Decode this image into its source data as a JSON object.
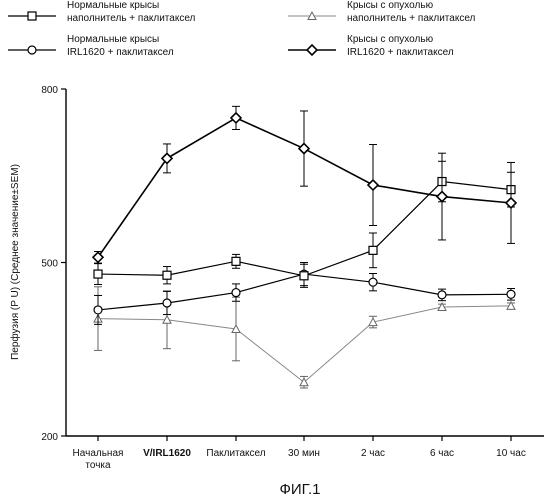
{
  "caption": "ФИГ.1",
  "chart_data": {
    "type": "line",
    "ylabel": "Перфузия (P U) (Среднее значение±SEM)",
    "ylim": [
      200,
      800
    ],
    "yticks": [
      200,
      500,
      800
    ],
    "grid": false,
    "legend_position": "top",
    "categories": [
      [
        "Начальная",
        "точка"
      ],
      [
        "V/IRL1620"
      ],
      [
        "Паклитаксел"
      ],
      [
        "30 мин"
      ],
      [
        "2 час"
      ],
      [
        "6 час"
      ],
      [
        "10 час"
      ]
    ],
    "series": [
      {
        "name": [
          "Нормальные крысы",
          "наполнитель + паклитаксел"
        ],
        "marker": "square",
        "color": "#000000",
        "line_color": "#000000",
        "line_width": 1.2,
        "values": [
          480,
          478,
          502,
          477,
          521,
          640,
          626
        ],
        "errors": [
          18,
          15,
          12,
          20,
          30,
          35,
          30
        ]
      },
      {
        "name": [
          "Нормальные крысы",
          "IRL1620 + паклитаксел"
        ],
        "marker": "circle",
        "color": "#000000",
        "line_color": "#000000",
        "line_width": 1.2,
        "values": [
          418,
          430,
          448,
          480,
          466,
          444,
          445
        ],
        "errors": [
          25,
          20,
          15,
          20,
          15,
          10,
          10
        ]
      },
      {
        "name": [
          "Крысы с опухолью",
          "наполнитель + паклитаксел"
        ],
        "marker": "triangle",
        "color": "#666666",
        "line_color": "#888888",
        "line_width": 1,
        "values": [
          403,
          401,
          385,
          293,
          397,
          423,
          425
        ],
        "errors": [
          55,
          50,
          55,
          10,
          10,
          5,
          5
        ]
      },
      {
        "name": [
          "Крысы с опухолью",
          "IRL1620 + паклитаксел"
        ],
        "marker": "diamond",
        "color": "#000000",
        "line_color": "#000000",
        "line_width": 1.6,
        "values": [
          509,
          680,
          750,
          697,
          634,
          614,
          603
        ],
        "errors": [
          10,
          25,
          20,
          65,
          70,
          75,
          70
        ]
      }
    ]
  }
}
